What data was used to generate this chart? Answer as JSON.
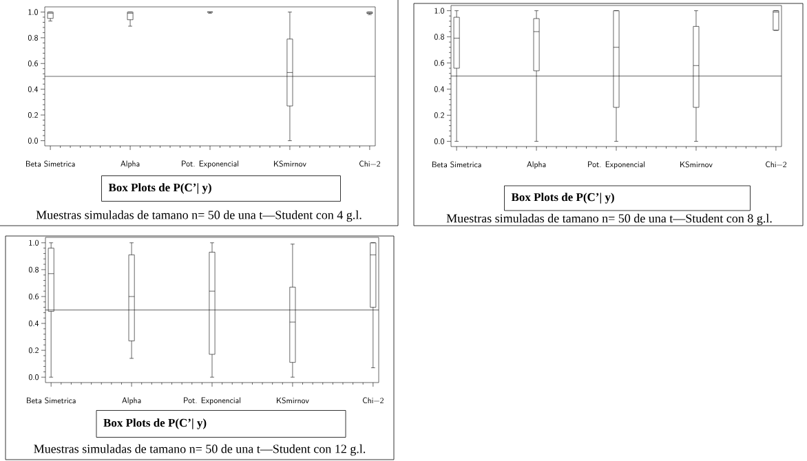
{
  "chart_data": [
    {
      "type": "box",
      "title": "Box Plots de P(C’| y)",
      "annotations": [
        "Muestras simuladas de tamano n= 50 de una t—Student con 4 g.l."
      ],
      "categories": [
        "Beta  Simetrica",
        "Alpha",
        "Pot. Exponencial",
        "KSmirnov",
        "Chi−2"
      ],
      "boxes": [
        {
          "low": 0.93,
          "q1": 0.95,
          "median": 0.99,
          "q3": 1.0,
          "high": 1.0
        },
        {
          "low": 0.89,
          "q1": 0.94,
          "median": 0.99,
          "q3": 1.0,
          "high": 1.0
        },
        {
          "low": 0.99,
          "q1": 1.0,
          "median": 1.0,
          "q3": 1.0,
          "high": 1.0
        },
        {
          "low": 0.0,
          "q1": 0.27,
          "median": 0.53,
          "q3": 0.79,
          "high": 1.0
        },
        {
          "low": 0.98,
          "q1": 0.99,
          "median": 0.99,
          "q3": 1.0,
          "high": 1.0
        }
      ],
      "ylim": [
        -0.04,
        1.04
      ],
      "yticks": [
        {
          "value": 0,
          "label": "0.0"
        },
        {
          "value": 0.2,
          "label": "0.2"
        },
        {
          "value": 0.4,
          "label": "0.4"
        },
        {
          "value": 0.6,
          "label": "0.6"
        },
        {
          "value": 0.8,
          "label": "0.8"
        },
        {
          "value": 1,
          "label": "1.0"
        }
      ],
      "ref_lines": [
        {
          "axis": "y",
          "value": 0.5
        }
      ]
    },
    {
      "type": "box",
      "title": "Box Plots de P(C’| y)",
      "annotations": [
        "Muestras simuladas de tamano n= 50 de una t—Student con 8 g.l."
      ],
      "categories": [
        "Beta  Simetrica",
        "Alpha",
        "Pot. Exponencial",
        "KSmirnov",
        "Chi−2"
      ],
      "boxes": [
        {
          "low": 0.0,
          "q1": 0.56,
          "median": 0.79,
          "q3": 0.95,
          "high": 1.0
        },
        {
          "low": 0.0,
          "q1": 0.54,
          "median": 0.84,
          "q3": 0.94,
          "high": 1.0
        },
        {
          "low": 0.0,
          "q1": 0.26,
          "median": 0.72,
          "q3": 1.0,
          "high": 1.0
        },
        {
          "low": 0.0,
          "q1": 0.26,
          "median": 0.58,
          "q3": 0.88,
          "high": 1.0
        },
        {
          "low": 0.85,
          "q1": 0.85,
          "median": 0.99,
          "q3": 1.0,
          "high": 1.0
        }
      ],
      "ylim": [
        -0.04,
        1.04
      ],
      "yticks": [
        {
          "value": 0,
          "label": "0.0"
        },
        {
          "value": 0.2,
          "label": "0.2"
        },
        {
          "value": 0.4,
          "label": "0.4"
        },
        {
          "value": 0.6,
          "label": "0.6"
        },
        {
          "value": 0.8,
          "label": "0.8"
        },
        {
          "value": 1,
          "label": "1.0"
        }
      ],
      "ref_lines": [
        {
          "axis": "y",
          "value": 0.5
        }
      ]
    },
    {
      "type": "box",
      "title": "Box Plots de P(C’| y)",
      "annotations": [
        "Muestras simuladas de tamano n= 50 de una t—Student con 12 g.l."
      ],
      "categories": [
        "Beta  Simetrica",
        "Alpha",
        "Pot. Exponencial",
        "KSmirnov",
        "Chi−2"
      ],
      "boxes": [
        {
          "low": 0.0,
          "q1": 0.49,
          "median": 0.77,
          "q3": 0.96,
          "high": 1.0
        },
        {
          "low": 0.14,
          "q1": 0.27,
          "median": 0.6,
          "q3": 0.91,
          "high": 1.0
        },
        {
          "low": 0.0,
          "q1": 0.17,
          "median": 0.64,
          "q3": 0.93,
          "high": 1.0
        },
        {
          "low": 0.0,
          "q1": 0.11,
          "median": 0.41,
          "q3": 0.67,
          "high": 0.99
        },
        {
          "low": 0.07,
          "q1": 0.52,
          "median": 0.91,
          "q3": 1.0,
          "high": 1.0
        }
      ],
      "ylim": [
        -0.04,
        1.04
      ],
      "yticks": [
        {
          "value": 0,
          "label": "0.0"
        },
        {
          "value": 0.2,
          "label": "0.2"
        },
        {
          "value": 0.4,
          "label": "0.4"
        },
        {
          "value": 0.6,
          "label": "0.6"
        },
        {
          "value": 0.8,
          "label": "0.8"
        },
        {
          "value": 1,
          "label": "1.0"
        }
      ],
      "ref_lines": [
        {
          "axis": "y",
          "value": 0.5
        }
      ]
    }
  ]
}
